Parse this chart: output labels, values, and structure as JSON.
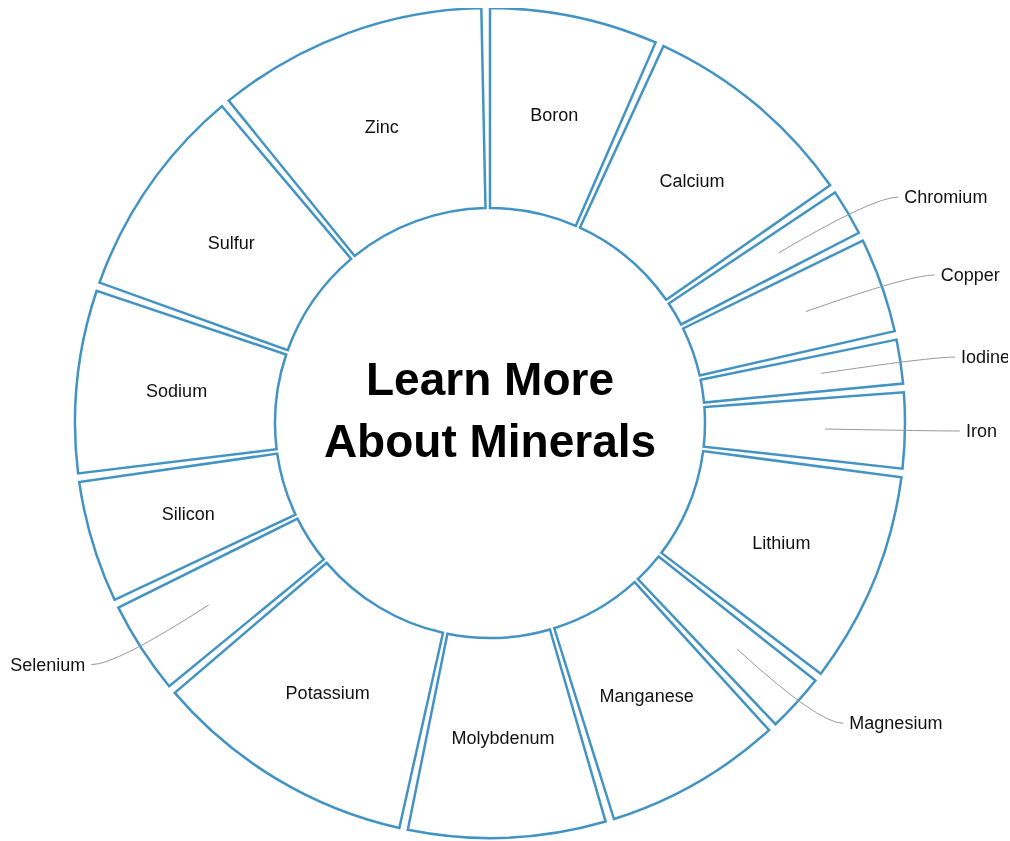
{
  "chart_data": {
    "type": "donut",
    "title": "Learn More About Minerals",
    "categories": [
      "Boron",
      "Calcium",
      "Chromium",
      "Copper",
      "Iodine",
      "Iron",
      "Lithium",
      "Magnesium",
      "Manganese",
      "Molybdenum",
      "Potassium",
      "Selenium",
      "Silicon",
      "Sodium",
      "Sulfur",
      "Zinc"
    ],
    "values": [
      6.9,
      8.9,
      1.9,
      3.9,
      1.8,
      3.1,
      8.7,
      2.4,
      7.3,
      8.1,
      10.8,
      3.8,
      5.0,
      7.5,
      8.8,
      11.1
    ],
    "colors": [
      "#4393c3",
      "#4393c3",
      "#4393c3",
      "#4393c3",
      "#4393c3",
      "#4393c3",
      "#4393c3",
      "#4393c3",
      "#4393c3",
      "#4393c3",
      "#4393c3",
      "#4393c3",
      "#4393c3",
      "#4393c3",
      "#4393c3",
      "#4393c3"
    ],
    "legend": false
  }
}
